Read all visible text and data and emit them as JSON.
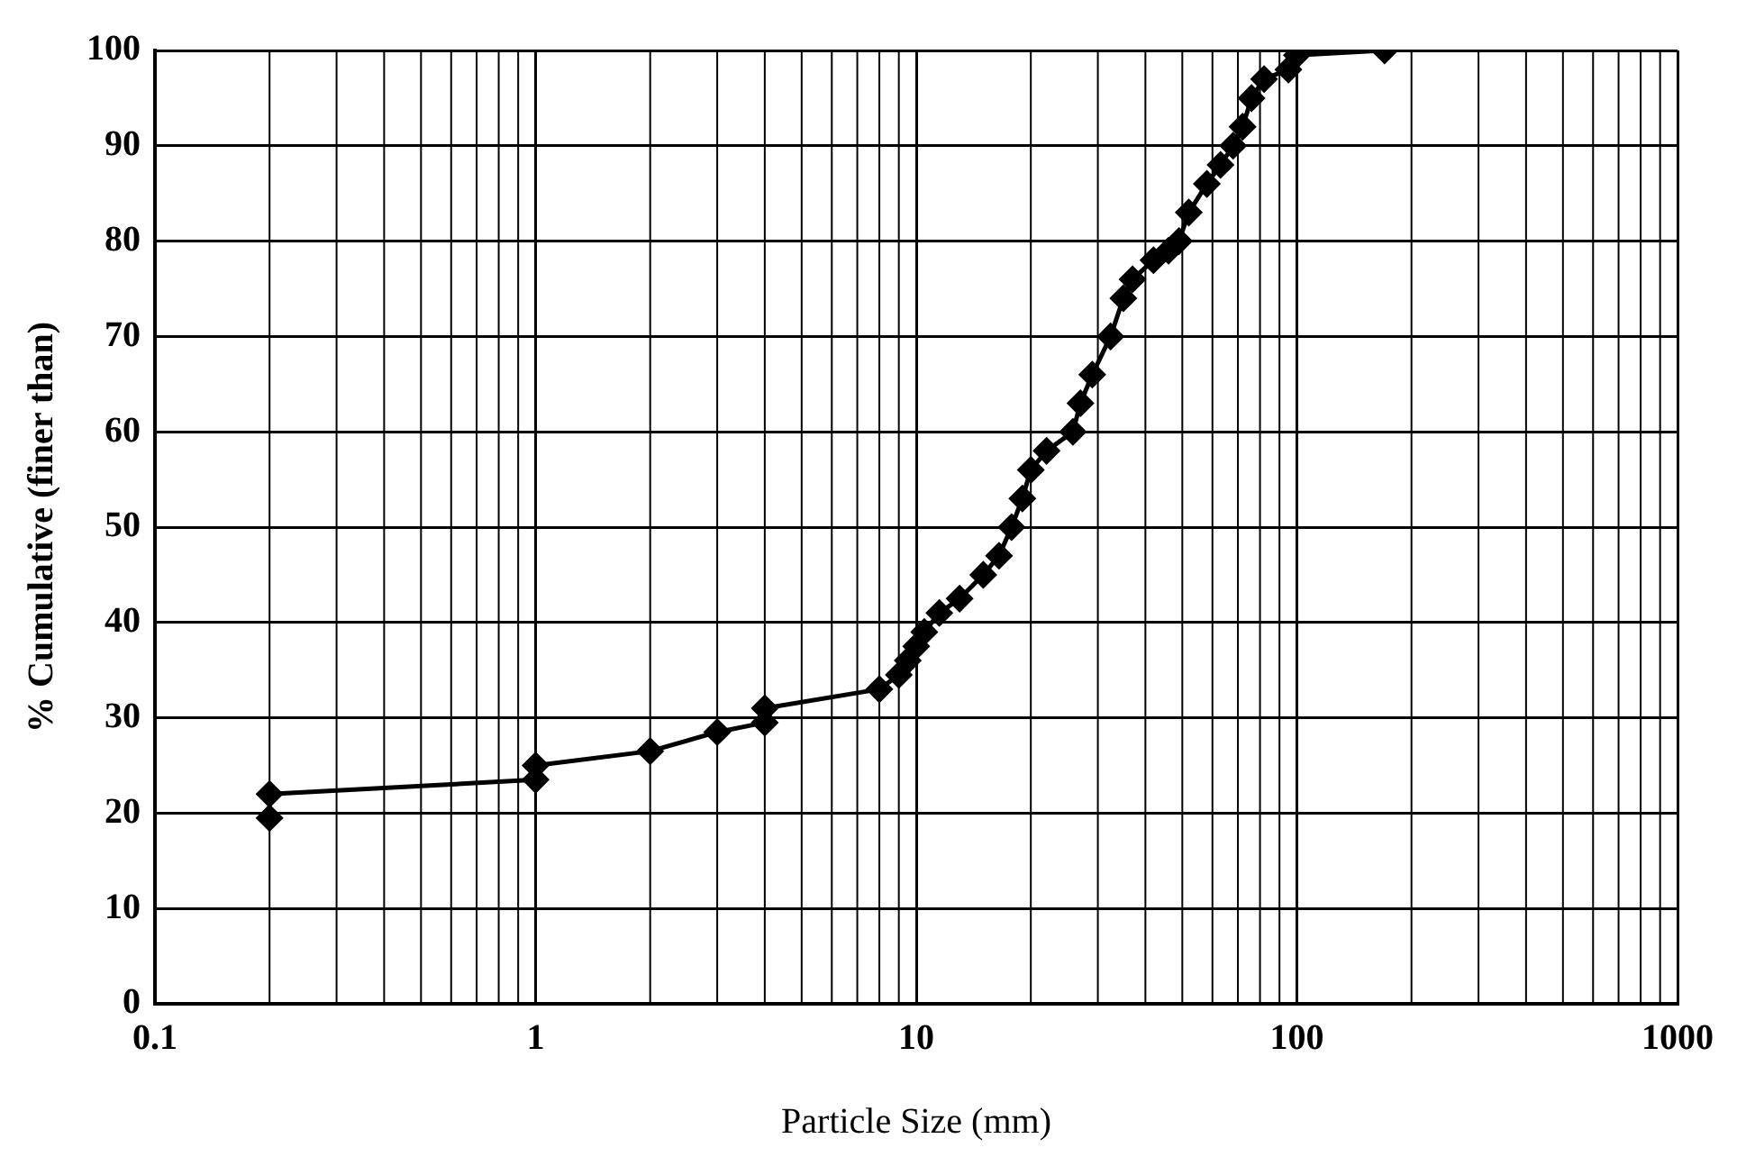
{
  "chart_data": {
    "type": "line",
    "xlabel": "Particle Size (mm)",
    "ylabel": "% Cumulative (finer than)",
    "log": "x",
    "grid": true,
    "legend": false,
    "marker": "diamond",
    "line_style": "solid",
    "xlim": [
      0.1,
      1000
    ],
    "xticks": [
      0.1,
      1,
      10,
      100,
      1000
    ],
    "ylim": [
      0,
      100
    ],
    "yticks": [
      0,
      10,
      20,
      30,
      40,
      50,
      60,
      70,
      80,
      90,
      100
    ],
    "series": [
      {
        "color": "#000000",
        "x": [
          0.2,
          0.2,
          1,
          1,
          2,
          3,
          4,
          4,
          8,
          9,
          9.5,
          10,
          10.5,
          11.5,
          13,
          15,
          16.5,
          17.8,
          19,
          20,
          22,
          25.8,
          27,
          29,
          32.4,
          35,
          37,
          42,
          46,
          49,
          52,
          58,
          63,
          68,
          72,
          76,
          82,
          95,
          100,
          170
        ],
        "values": [
          19.5,
          22,
          23.5,
          25,
          26.5,
          28.5,
          29.5,
          31,
          33,
          34.5,
          36,
          37.5,
          39,
          41,
          42.5,
          45,
          47,
          50,
          53,
          56,
          58,
          60,
          63,
          66,
          70,
          74,
          76,
          78,
          79,
          80,
          83,
          86,
          88,
          90,
          92,
          95,
          97,
          98,
          99.5,
          100
        ]
      }
    ]
  }
}
